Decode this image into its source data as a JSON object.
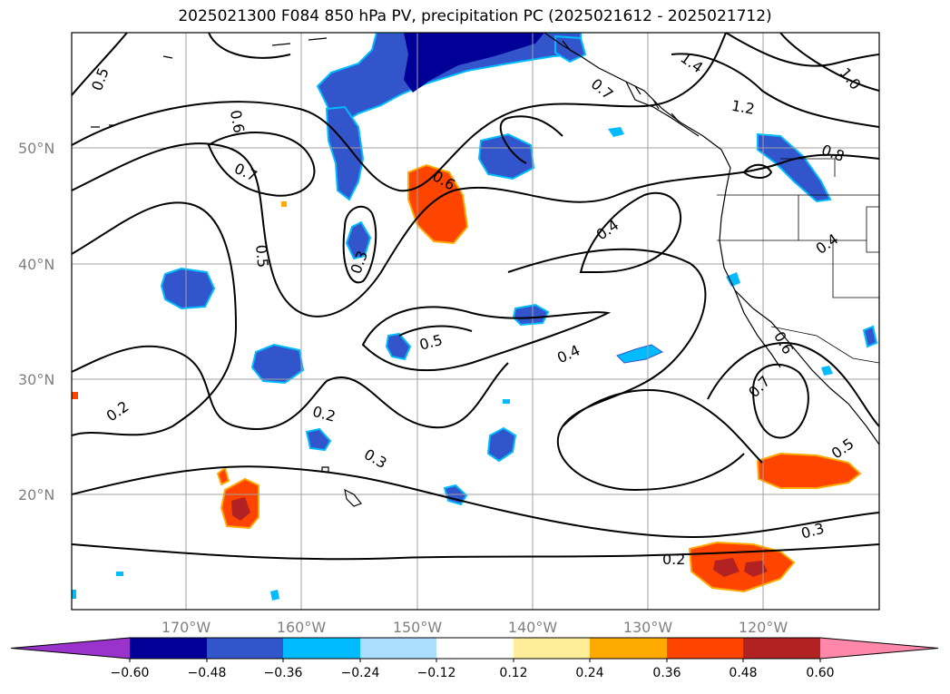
{
  "title": "2025021300 F084 850 hPa PV, precipitation PC (2025021612 - 2025021712)",
  "lat_labels": [
    "50°N",
    "40°N",
    "30°N",
    "20°N"
  ],
  "lon_labels": [
    "170°W",
    "160°W",
    "150°W",
    "140°W",
    "130°W",
    "120°W"
  ],
  "colorbar": {
    "ticks": [
      "−0.60",
      "−0.48",
      "−0.36",
      "−0.24",
      "−0.12",
      "0.12",
      "0.24",
      "0.36",
      "0.48",
      "0.60"
    ],
    "colors": [
      "#9933cc",
      "#000099",
      "#3355cc",
      "#00bbff",
      "#aaddff",
      "#ffffff",
      "#ffee99",
      "#ffaa00",
      "#ff4400",
      "#b22222",
      "#ff88aa"
    ]
  },
  "contour_labels": [
    "0.5",
    "0.6",
    "0.7",
    "0.5",
    "0.3",
    "0.6",
    "0.4",
    "0.5",
    "0.4",
    "0.2",
    "0.2",
    "0.3",
    "1.4",
    "1.0",
    "1.2",
    "0.7",
    "0.8",
    "0.4",
    "0.6",
    "0.7",
    "0.5",
    "0.3",
    "0.2"
  ]
}
